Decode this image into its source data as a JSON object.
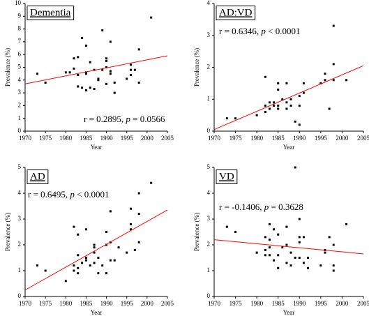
{
  "chart_data": [
    {
      "type": "scatter",
      "title": "Dementia",
      "annotation": [
        "r = 0.2895, ",
        "p",
        " = 0.0566"
      ],
      "xlabel": "Year",
      "ylabel": "Prevalence (%)",
      "color": "#000000",
      "x": [
        1973,
        1975,
        1980,
        1981,
        1982,
        1982,
        1983,
        1983,
        1983,
        1984,
        1984,
        1985,
        1985,
        1985,
        1985,
        1986,
        1986,
        1987,
        1987,
        1988,
        1988,
        1989,
        1989,
        1990,
        1990,
        1990,
        1990,
        1991,
        1991,
        1991,
        1992,
        1992,
        1995,
        1996,
        1996,
        1996,
        1997,
        1998,
        1998,
        2001
      ],
      "y": [
        4.5,
        3.8,
        4.6,
        4.6,
        5.7,
        4.9,
        4.4,
        3.5,
        5.8,
        7.3,
        3.4,
        4.5,
        6.7,
        3.2,
        4.6,
        5.4,
        3.4,
        4.8,
        3.3,
        4.0,
        4.1,
        7.9,
        4.8,
        5.7,
        5.5,
        5.0,
        3.7,
        7.0,
        4.7,
        4.5,
        3.8,
        3.0,
        4.1,
        4.8,
        5.2,
        4.4,
        4.8,
        6.4,
        3.8,
        8.9
      ],
      "fit": {
        "x": [
          1970,
          2005
        ],
        "y": [
          3.7,
          5.9
        ],
        "color": "#ff0000"
      },
      "xlim": [
        1970,
        2005
      ],
      "ylim": [
        0,
        10
      ],
      "xticks": [
        1970,
        1975,
        1980,
        1985,
        1990,
        1995,
        2000,
        2005
      ],
      "yticks": [
        0,
        1,
        2,
        3,
        4,
        5,
        6,
        7,
        8,
        9,
        10
      ]
    },
    {
      "type": "scatter",
      "title": "AD:VD",
      "annotation": [
        "r = 0.6346, ",
        "p",
        " < 0.0001"
      ],
      "xlabel": "Year",
      "ylabel": "Prevalence (%)",
      "color": "#000000",
      "x": [
        1973,
        1975,
        1980,
        1982,
        1982,
        1982,
        1983,
        1983,
        1983,
        1984,
        1984,
        1985,
        1985,
        1985,
        1985,
        1986,
        1987,
        1987,
        1987,
        1988,
        1988,
        1989,
        1990,
        1990,
        1990,
        1991,
        1991,
        1995,
        1996,
        1996,
        1997,
        1998,
        1998,
        1998,
        2001
      ],
      "y": [
        0.4,
        0.4,
        0.5,
        1.7,
        0.8,
        0.6,
        0.9,
        0.7,
        0.7,
        0.8,
        0.9,
        1.5,
        1.3,
        0.8,
        0.7,
        1.0,
        1.5,
        0.9,
        0.7,
        1.0,
        0.8,
        0.3,
        1.1,
        0.8,
        0.2,
        1.5,
        1.2,
        1.5,
        1.8,
        1.6,
        0.7,
        3.3,
        2.1,
        1.6,
        1.6
      ],
      "fit": {
        "x": [
          1970,
          2005
        ],
        "y": [
          0.05,
          2.05
        ],
        "color": "#ff0000"
      },
      "xlim": [
        1970,
        2005
      ],
      "ylim": [
        0,
        4
      ],
      "xticks": [
        1970,
        1975,
        1980,
        1985,
        1990,
        1995,
        2000,
        2005
      ],
      "yticks": [
        0,
        1,
        2,
        3,
        4
      ]
    },
    {
      "type": "scatter",
      "title": "AD",
      "annotation": [
        "r = 0.6495, ",
        "p",
        " < 0.0001"
      ],
      "xlabel": "Year",
      "ylabel": "Prevalence (%)",
      "color": "#000000",
      "x": [
        1973,
        1975,
        1980,
        1982,
        1982,
        1982,
        1983,
        1983,
        1983,
        1983,
        1984,
        1985,
        1985,
        1985,
        1986,
        1987,
        1987,
        1987,
        1987,
        1988,
        1988,
        1989,
        1990,
        1990,
        1990,
        1991,
        1991,
        1991,
        1992,
        1993,
        1995,
        1996,
        1996,
        1996,
        1997,
        1998,
        1998,
        1998,
        2001
      ],
      "y": [
        1.2,
        1.0,
        0.6,
        2.7,
        1.2,
        1.0,
        1.6,
        1.1,
        0.9,
        2.4,
        1.3,
        2.6,
        1.5,
        1.4,
        1.2,
        2.0,
        1.9,
        1.7,
        1.3,
        0.9,
        1.5,
        1.2,
        2.5,
        2.0,
        0.9,
        3.3,
        2.1,
        1.4,
        1.4,
        1.9,
        1.7,
        3.4,
        2.6,
        2.8,
        1.8,
        4.0,
        3.2,
        2.1,
        4.4
      ],
      "fit": {
        "x": [
          1970,
          2005
        ],
        "y": [
          0.25,
          3.35
        ],
        "color": "#ff0000"
      },
      "xlim": [
        1970,
        2005
      ],
      "ylim": [
        0,
        5
      ],
      "xticks": [
        1970,
        1975,
        1980,
        1985,
        1990,
        1995,
        2000,
        2005
      ],
      "yticks": [
        0,
        1,
        2,
        3,
        4,
        5
      ]
    },
    {
      "type": "scatter",
      "title": "VD",
      "annotation": [
        "r = -0.1406, ",
        "p",
        " = 0.3628"
      ],
      "xlabel": "Year",
      "ylabel": "Prevalence (%)",
      "color": "#000000",
      "x": [
        1973,
        1975,
        1980,
        1982,
        1982,
        1982,
        1983,
        1983,
        1983,
        1983,
        1984,
        1984,
        1985,
        1985,
        1985,
        1986,
        1987,
        1987,
        1987,
        1988,
        1988,
        1989,
        1989,
        1990,
        1990,
        1990,
        1990,
        1991,
        1991,
        1992,
        1992,
        1995,
        1996,
        1996,
        1997,
        1998,
        1998,
        1998,
        2001
      ],
      "y": [
        2.7,
        2.5,
        1.7,
        2.3,
        1.8,
        1.6,
        2.8,
        2.2,
        1.9,
        1.6,
        2.6,
        1.4,
        2.4,
        1.6,
        1.1,
        1.9,
        2.7,
        2.0,
        1.3,
        1.2,
        1.7,
        5.0,
        1.5,
        3.0,
        2.3,
        2.1,
        1.5,
        2.3,
        1.3,
        1.5,
        1.1,
        1.2,
        1.8,
        1.7,
        2.3,
        2.0,
        1.2,
        1.0,
        2.8
      ],
      "fit": {
        "x": [
          1970,
          2005
        ],
        "y": [
          2.2,
          1.65
        ],
        "color": "#ff0000"
      },
      "xlim": [
        1970,
        2005
      ],
      "ylim": [
        0,
        5
      ],
      "xticks": [
        1970,
        1975,
        1980,
        1985,
        1990,
        1995,
        2000,
        2005
      ],
      "yticks": [
        0,
        1,
        2,
        3,
        4,
        5
      ]
    }
  ]
}
